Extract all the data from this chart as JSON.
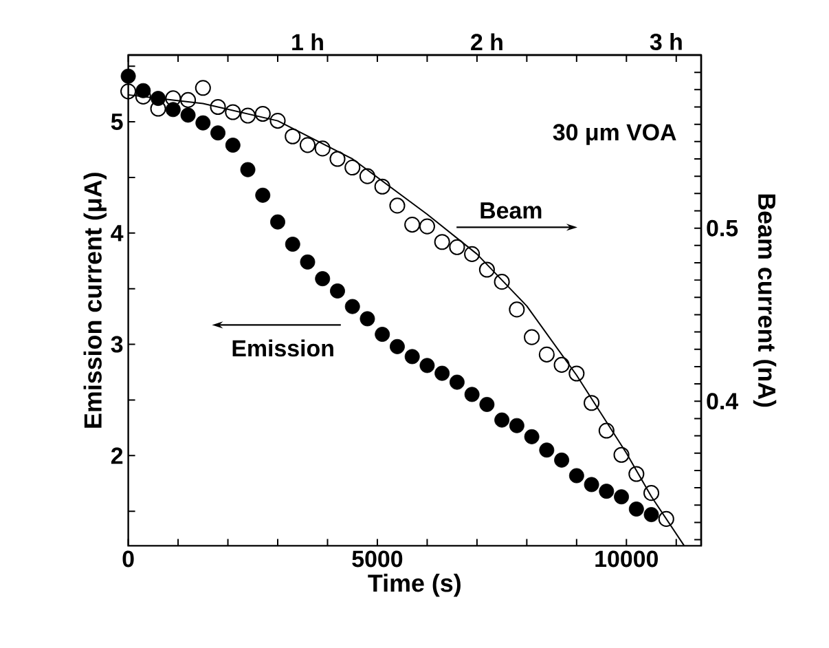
{
  "chart_data": {
    "type": "scatter",
    "xlabel": "Time (s)",
    "ylabel": "Emission current (μA)",
    "y2label": "Beam current (nA)",
    "xlim": [
      0,
      11500
    ],
    "ylim": [
      1.19,
      5.6
    ],
    "y2lim": [
      0.3165,
      0.6
    ],
    "xticks": [
      0,
      {
        "value": 1000,
        "label": null
      },
      {
        "value": 2000,
        "label": null
      },
      {
        "value": 3000,
        "label": null
      },
      {
        "value": 4000,
        "label": null
      },
      5000,
      {
        "value": 6000,
        "label": null
      },
      {
        "value": 7000,
        "label": null
      },
      {
        "value": 8000,
        "label": null
      },
      {
        "value": 9000,
        "label": null
      },
      10000,
      {
        "value": 11000,
        "label": null
      }
    ],
    "x2lim": [
      0,
      3.194
    ],
    "x2ticks": [
      {
        "value": 1,
        "label": "1 h"
      },
      {
        "value": 2,
        "label": "2 h"
      },
      {
        "value": 3,
        "label": "3 h"
      }
    ],
    "yticks": [
      {
        "value": 1.5,
        "label": null
      },
      2,
      {
        "value": 2.5,
        "label": null
      },
      3,
      {
        "value": 3.5,
        "label": null
      },
      4,
      {
        "value": 4.5,
        "label": null
      },
      5,
      {
        "value": 5.5,
        "label": null
      }
    ],
    "y2ticks": [
      {
        "value": 0.32,
        "label": null
      },
      {
        "value": 0.33,
        "label": null
      },
      {
        "value": 0.34,
        "label": null
      },
      {
        "value": 0.35,
        "label": null
      },
      {
        "value": 0.36,
        "label": null
      },
      {
        "value": 0.37,
        "label": null
      },
      {
        "value": 0.38,
        "label": null
      },
      {
        "value": 0.39,
        "label": null
      },
      0.4,
      {
        "value": 0.41,
        "label": null
      },
      {
        "value": 0.42,
        "label": null
      },
      {
        "value": 0.43,
        "label": null
      },
      {
        "value": 0.44,
        "label": null
      },
      {
        "value": 0.45,
        "label": null
      },
      {
        "value": 0.46,
        "label": null
      },
      {
        "value": 0.47,
        "label": null
      },
      {
        "value": 0.48,
        "label": null
      },
      {
        "value": 0.49,
        "label": null
      },
      0.5,
      {
        "value": 0.51,
        "label": null
      },
      {
        "value": 0.52,
        "label": null
      },
      {
        "value": 0.53,
        "label": null
      },
      {
        "value": 0.54,
        "label": null
      },
      {
        "value": 0.55,
        "label": null
      },
      {
        "value": 0.56,
        "label": null
      },
      {
        "value": 0.57,
        "label": null
      },
      {
        "value": 0.58,
        "label": null
      },
      {
        "value": 0.59,
        "label": null
      }
    ],
    "marker": "circle",
    "annotations": [
      "30 μm VOA",
      "Emission",
      "Beam"
    ],
    "series": [
      {
        "color": "#000000",
        "x": [
          0,
          300,
          600,
          900,
          1200,
          1500,
          1800,
          2100,
          2400,
          2700,
          3000,
          3300,
          3600,
          3900,
          4200,
          4500,
          4800,
          5100,
          5400,
          5700,
          6000,
          6300,
          6600,
          6900,
          7200,
          7500,
          7800,
          8100,
          8400,
          8700,
          9000,
          9300,
          9600,
          9900,
          10200,
          10500
        ],
        "values": [
          5.41,
          5.28,
          5.21,
          5.11,
          5.06,
          4.99,
          4.9,
          4.79,
          4.57,
          4.34,
          4.1,
          3.9,
          3.74,
          3.59,
          3.48,
          3.34,
          3.23,
          3.09,
          2.98,
          2.89,
          2.81,
          2.74,
          2.66,
          2.55,
          2.46,
          2.32,
          2.27,
          2.17,
          2.05,
          1.96,
          1.82,
          1.74,
          1.68,
          1.63,
          1.52,
          1.47
        ]
      },
      {
        "axis": "y2",
        "color": "#000000",
        "x": [
          0,
          300,
          600,
          900,
          1200,
          1500,
          1800,
          2100,
          2400,
          2700,
          3000,
          3300,
          3600,
          3900,
          4200,
          4500,
          4800,
          5100,
          5400,
          5700,
          6000,
          6300,
          6600,
          6900,
          7200,
          7500,
          7800,
          8100,
          8400,
          8700,
          9000,
          9300,
          9600,
          9900,
          10200,
          10500,
          10800
        ],
        "values": [
          0.579,
          0.576,
          0.569,
          0.575,
          0.574,
          0.581,
          0.57,
          0.567,
          0.565,
          0.566,
          0.562,
          0.553,
          0.548,
          0.546,
          0.54,
          0.535,
          0.53,
          0.524,
          0.513,
          0.502,
          0.501,
          0.492,
          0.489,
          0.485,
          0.476,
          0.469,
          0.453,
          0.437,
          0.427,
          0.421,
          0.416,
          0.399,
          0.383,
          0.369,
          0.358,
          0.347,
          0.332
        ]
      },
      {
        "type": "line",
        "axis": "y2",
        "color": "#000000",
        "marker": "none",
        "x": [
          0,
          1500,
          3000,
          4500,
          6000,
          7000,
          8000,
          9000,
          10000,
          10500,
          11160
        ],
        "values": [
          0.577,
          0.572,
          0.562,
          0.54,
          0.508,
          0.485,
          0.455,
          0.415,
          0.37,
          0.345,
          0.3165
        ]
      }
    ]
  }
}
